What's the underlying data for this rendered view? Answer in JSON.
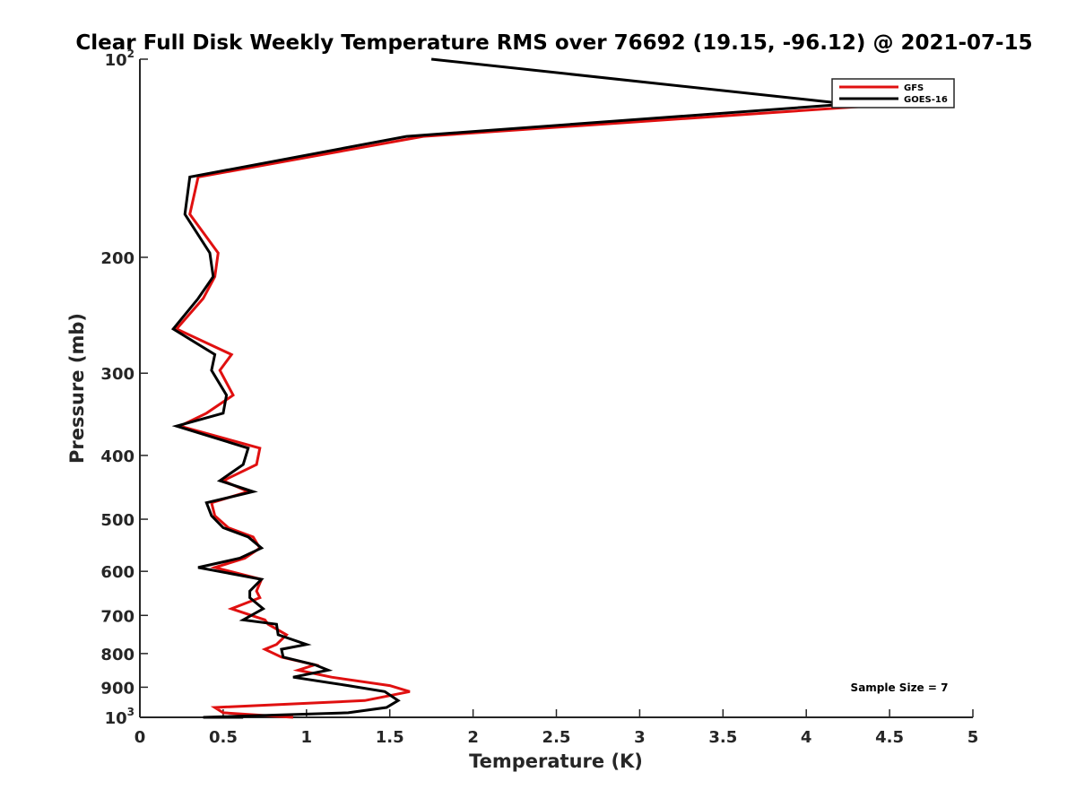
{
  "chart_data": {
    "type": "line",
    "title": "Clear Full Disk Weekly Temperature RMS over 76692 (19.15, -96.12) @ 2021-07-15",
    "xlabel": "Temperature (K)",
    "ylabel": "Pressure (mb)",
    "xlim": [
      0,
      5
    ],
    "ylim": [
      100,
      1000
    ],
    "y_scale": "log",
    "y_reversed": true,
    "x_ticks": [
      {
        "value": 0,
        "label": "0"
      },
      {
        "value": 0.5,
        "label": "0.5"
      },
      {
        "value": 1,
        "label": "1"
      },
      {
        "value": 1.5,
        "label": "1.5"
      },
      {
        "value": 2,
        "label": "2"
      },
      {
        "value": 2.5,
        "label": "2.5"
      },
      {
        "value": 3,
        "label": "3"
      },
      {
        "value": 3.5,
        "label": "3.5"
      },
      {
        "value": 4,
        "label": "4"
      },
      {
        "value": 4.5,
        "label": "4.5"
      },
      {
        "value": 5,
        "label": "5"
      }
    ],
    "y_ticks": [
      {
        "value": 100,
        "base": "10",
        "exp": "2"
      },
      {
        "value": 200,
        "base": "200",
        "exp": ""
      },
      {
        "value": 300,
        "base": "300",
        "exp": ""
      },
      {
        "value": 400,
        "base": "400",
        "exp": ""
      },
      {
        "value": 500,
        "base": "500",
        "exp": ""
      },
      {
        "value": 600,
        "base": "600",
        "exp": ""
      },
      {
        "value": 700,
        "base": "700",
        "exp": ""
      },
      {
        "value": 800,
        "base": "800",
        "exp": ""
      },
      {
        "value": 900,
        "base": "900",
        "exp": ""
      },
      {
        "value": 1000,
        "base": "10",
        "exp": "3"
      }
    ],
    "grid": false,
    "legend_position": "top-right",
    "annotation": "Sample Size = 7",
    "series": [
      {
        "name": "GFS",
        "color": "#e01010",
        "points": [
          [
            4.55,
            117
          ],
          [
            1.7,
            131
          ],
          [
            0.35,
            151
          ],
          [
            0.3,
            172
          ],
          [
            0.47,
            197
          ],
          [
            0.45,
            214
          ],
          [
            0.38,
            231
          ],
          [
            0.22,
            257
          ],
          [
            0.55,
            281
          ],
          [
            0.48,
            297
          ],
          [
            0.56,
            324
          ],
          [
            0.4,
            345
          ],
          [
            0.24,
            361
          ],
          [
            0.72,
            390
          ],
          [
            0.7,
            413
          ],
          [
            0.5,
            437
          ],
          [
            0.65,
            454
          ],
          [
            0.43,
            472
          ],
          [
            0.45,
            494
          ],
          [
            0.53,
            515
          ],
          [
            0.68,
            532
          ],
          [
            0.72,
            553
          ],
          [
            0.63,
            573
          ],
          [
            0.45,
            592
          ],
          [
            0.73,
            617
          ],
          [
            0.7,
            643
          ],
          [
            0.72,
            658
          ],
          [
            0.55,
            684
          ],
          [
            0.75,
            711
          ],
          [
            0.77,
            722
          ],
          [
            0.88,
            749
          ],
          [
            0.82,
            775
          ],
          [
            0.75,
            788
          ],
          [
            0.85,
            810
          ],
          [
            1.05,
            832
          ],
          [
            0.95,
            848
          ],
          [
            1.15,
            869
          ],
          [
            1.5,
            895
          ],
          [
            1.62,
            914
          ],
          [
            1.35,
            943
          ],
          [
            0.45,
            966
          ],
          [
            0.5,
            984
          ],
          [
            0.92,
            1000
          ]
        ]
      },
      {
        "name": "GOES-16",
        "color": "#000000",
        "points": [
          [
            1.75,
            100
          ],
          [
            4.25,
            117
          ],
          [
            1.6,
            131
          ],
          [
            0.3,
            151
          ],
          [
            0.27,
            172
          ],
          [
            0.42,
            197
          ],
          [
            0.44,
            214
          ],
          [
            0.35,
            231
          ],
          [
            0.2,
            257
          ],
          [
            0.45,
            281
          ],
          [
            0.43,
            297
          ],
          [
            0.52,
            324
          ],
          [
            0.5,
            345
          ],
          [
            0.22,
            361
          ],
          [
            0.65,
            390
          ],
          [
            0.62,
            413
          ],
          [
            0.48,
            437
          ],
          [
            0.68,
            454
          ],
          [
            0.4,
            472
          ],
          [
            0.43,
            494
          ],
          [
            0.5,
            515
          ],
          [
            0.65,
            532
          ],
          [
            0.73,
            553
          ],
          [
            0.6,
            573
          ],
          [
            0.35,
            592
          ],
          [
            0.73,
            617
          ],
          [
            0.66,
            643
          ],
          [
            0.66,
            658
          ],
          [
            0.74,
            684
          ],
          [
            0.62,
            711
          ],
          [
            0.82,
            722
          ],
          [
            0.83,
            749
          ],
          [
            1.0,
            775
          ],
          [
            0.85,
            788
          ],
          [
            0.86,
            810
          ],
          [
            1.05,
            832
          ],
          [
            1.13,
            848
          ],
          [
            0.92,
            869
          ],
          [
            1.25,
            895
          ],
          [
            1.47,
            914
          ],
          [
            1.55,
            943
          ],
          [
            1.48,
            966
          ],
          [
            1.25,
            984
          ],
          [
            0.38,
            1000
          ],
          [
            0.62,
            1000
          ]
        ]
      }
    ]
  }
}
